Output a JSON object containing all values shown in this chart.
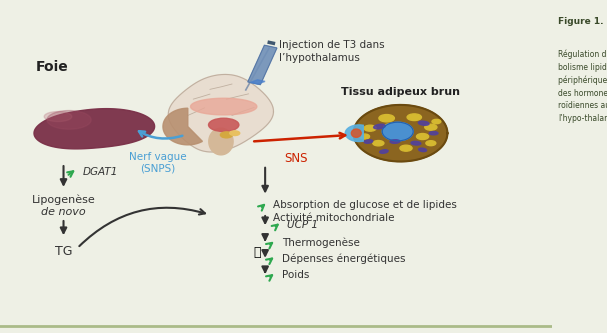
{
  "bg_color": "#eef0e5",
  "foie_label": "Foie",
  "injection_label": "Injection de T3 dans\nl’hypothalamus",
  "tad_label": "Tissu adipeux brun",
  "nerf_label": "Nerf vague\n(SNPS)",
  "sns_label": "SNS",
  "dgat1_label": "DGAT1",
  "lipogenese_line1": "Lipogenèse",
  "lipogenese_line2": "de novo",
  "tg_label": "TG",
  "absorption_label": "Absorption de glucose et de lipides\nActivité mitochondriale",
  "ucp1_label": "UCP 1",
  "thermo_label": "Thermogenèse",
  "depenses_label": "Dépenses énergétiques",
  "poids_label": "Poids",
  "dark": "#333333",
  "blue": "#4a9fd4",
  "red": "#cc2200",
  "green": "#2ea84f",
  "liver_color": "#7a3048",
  "liver_highlight": "#9a4a60",
  "brain_color": "#e8d5c0",
  "brain_edge": "#c0a890",
  "cell_brown": "#8b6520",
  "cell_yellow": "#d4b830",
  "cell_blue": "#4a90d0",
  "cell_purple": "#5040a0",
  "sidebar_title": "Figure 1.",
  "sidebar_text": "Régulation du méta-\nbolisme lipidique\npériphérique par l’action\ndes hormones thy-\nroïdiennes au niveau de\nl’hypo-thalamus"
}
